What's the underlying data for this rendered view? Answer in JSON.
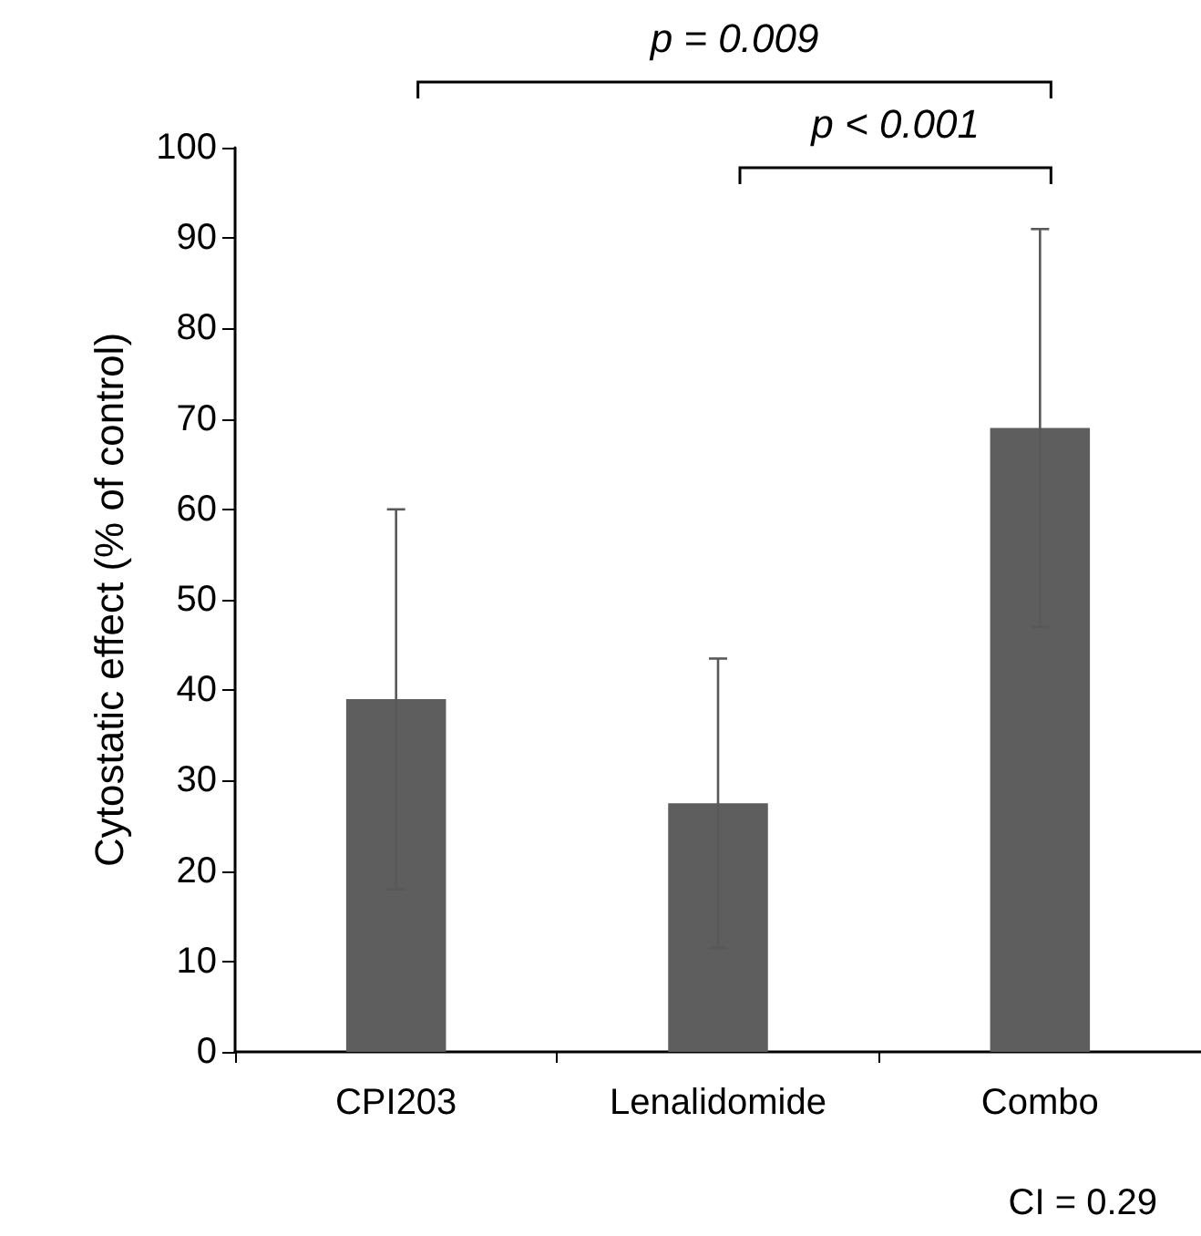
{
  "chart_data": {
    "type": "bar",
    "ylabel": "Cytostatic effect (% of control)",
    "categories": [
      "CPI203",
      "Lenalidomide",
      "Combo"
    ],
    "values": [
      39,
      27.5,
      69
    ],
    "errors": [
      21,
      16,
      22
    ],
    "color": "#5e5e5e",
    "ylim": [
      0,
      100
    ],
    "yticks": [
      0,
      10,
      20,
      30,
      40,
      50,
      60,
      70,
      80,
      90,
      100
    ],
    "grid": false,
    "annotations": [
      "p = 0.009",
      "p < 0.001",
      "CI = 0.29"
    ]
  }
}
